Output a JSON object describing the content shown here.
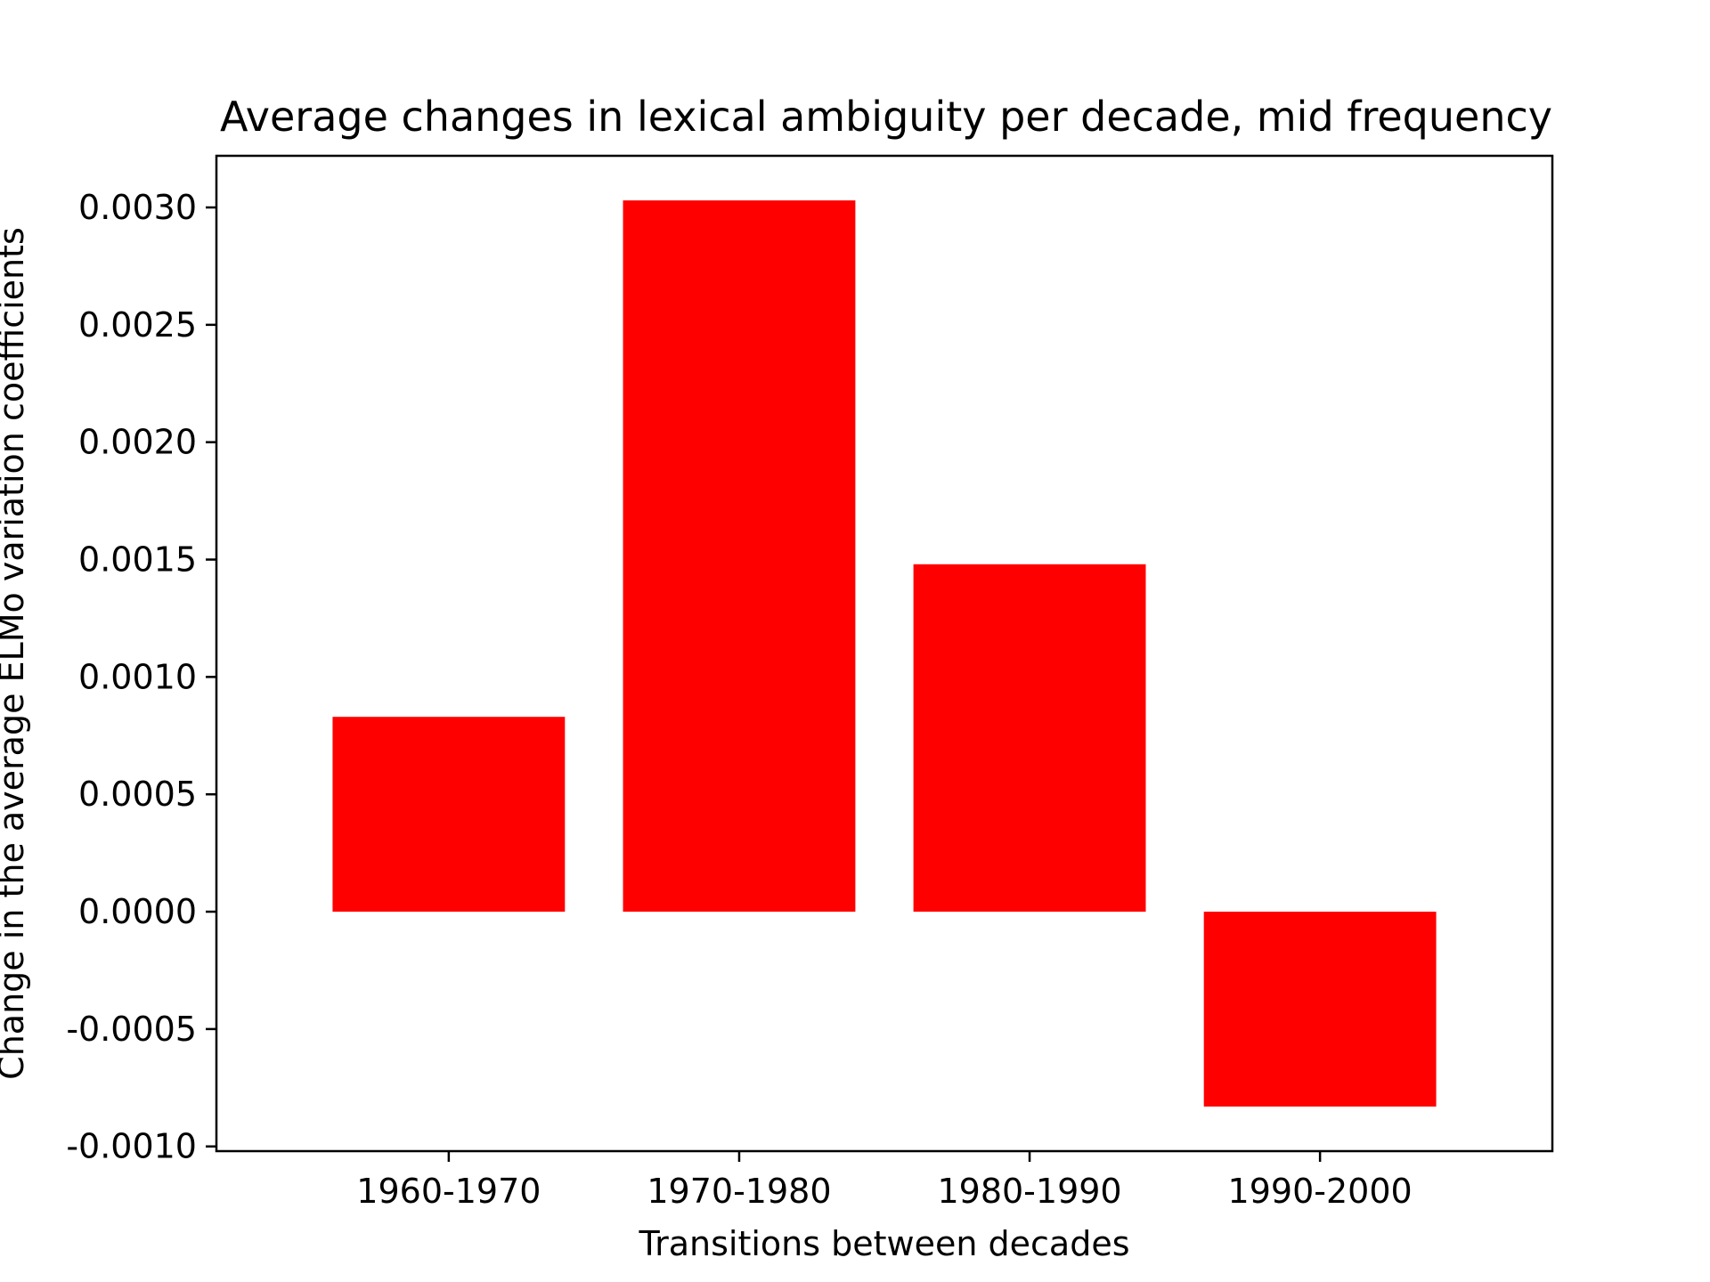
{
  "chart_data": {
    "type": "bar",
    "title": "Average changes in lexical ambiguity per decade, mid frequency",
    "xlabel": "Transitions between decades",
    "ylabel": "Change in the average ELMo variation coefficients",
    "categories": [
      "1960-1970",
      "1970-1980",
      "1980-1990",
      "1990-2000"
    ],
    "values": [
      0.00083,
      0.00303,
      0.00148,
      -0.00083
    ],
    "ylim": [
      -0.00102,
      0.00322
    ],
    "yticks": [
      -0.001,
      -0.0005,
      0.0,
      0.0005,
      0.001,
      0.0015,
      0.002,
      0.0025,
      0.003
    ],
    "ytick_labels": [
      "-0.0010",
      "-0.0005",
      "0.0000",
      "0.0005",
      "0.0010",
      "0.0015",
      "0.0020",
      "0.0025",
      "0.0030"
    ],
    "bar_color": "#ff0000",
    "grid": false,
    "legend": "none"
  }
}
